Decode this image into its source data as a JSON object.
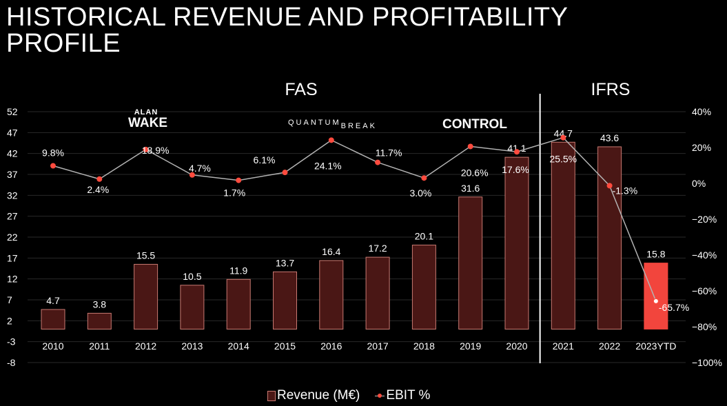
{
  "title": "HISTORICAL REVENUE AND PROFITABILITY PROFILE",
  "colors": {
    "bar_fill": "#4a1715",
    "bar_stroke": "#c97a72",
    "bar_highlight": "#f2453d",
    "line": "#b3b3b3",
    "marker": "#ff4b3e",
    "grid": "#2a2a2a",
    "background": "#000000"
  },
  "logos": {
    "alan_wake": {
      "line1": "ALAN",
      "line2": "WAKE"
    },
    "quantum_break": {
      "part1": "QUANTUM",
      "part2": "BREAK"
    },
    "control": "CONTROL"
  },
  "chart_data": {
    "type": "bar",
    "title": "HISTORICAL REVENUE AND PROFITABILITY PROFILE",
    "sections": [
      {
        "label": "FAS",
        "from": "2010",
        "to": "2020"
      },
      {
        "label": "IFRS",
        "from": "2021",
        "to": "2023YTD"
      }
    ],
    "categories": [
      "2010",
      "2011",
      "2012",
      "2013",
      "2014",
      "2015",
      "2016",
      "2017",
      "2018",
      "2019",
      "2020",
      "2021",
      "2022",
      "2023YTD"
    ],
    "series": [
      {
        "name": "Revenue (M€)",
        "type": "bar",
        "axis": "left",
        "values": [
          4.7,
          3.8,
          15.5,
          10.5,
          11.9,
          13.7,
          16.4,
          17.2,
          20.1,
          31.6,
          41.1,
          44.7,
          43.6,
          15.8
        ],
        "labels": [
          "4.7",
          "3.8",
          "15.5",
          "10.5",
          "11.9",
          "13.7",
          "16.4",
          "17.2",
          "20.1",
          "31.6",
          "41.1",
          "44.7",
          "43.6",
          "15.8"
        ],
        "highlight_index": 13
      },
      {
        "name": "EBIT %",
        "type": "line",
        "axis": "right",
        "values": [
          9.8,
          2.4,
          18.9,
          4.7,
          1.7,
          6.1,
          24.1,
          11.7,
          3.0,
          20.6,
          17.6,
          25.5,
          -1.3,
          -65.7
        ],
        "labels": [
          "9.8%",
          "2.4%",
          "18.9%",
          "4.7%",
          "1.7%",
          "6.1%",
          "24.1%",
          "11.7%",
          "3.0%",
          "20.6%",
          "17.6%",
          "25.5%",
          "-1.3%",
          "-65.7%"
        ]
      }
    ],
    "y_left": {
      "min": -8,
      "max": 52,
      "ticks": [
        "52",
        "47",
        "42",
        "37",
        "32",
        "27",
        "22",
        "17",
        "12",
        "7",
        "2",
        "-3",
        "-8"
      ]
    },
    "y_right": {
      "min": -100,
      "max": 40,
      "ticks": [
        "40%",
        "20%",
        "0%",
        "−20%",
        "−40%",
        "−60%",
        "−80%",
        "−100%"
      ]
    },
    "grid": true,
    "legend": "bottom"
  }
}
